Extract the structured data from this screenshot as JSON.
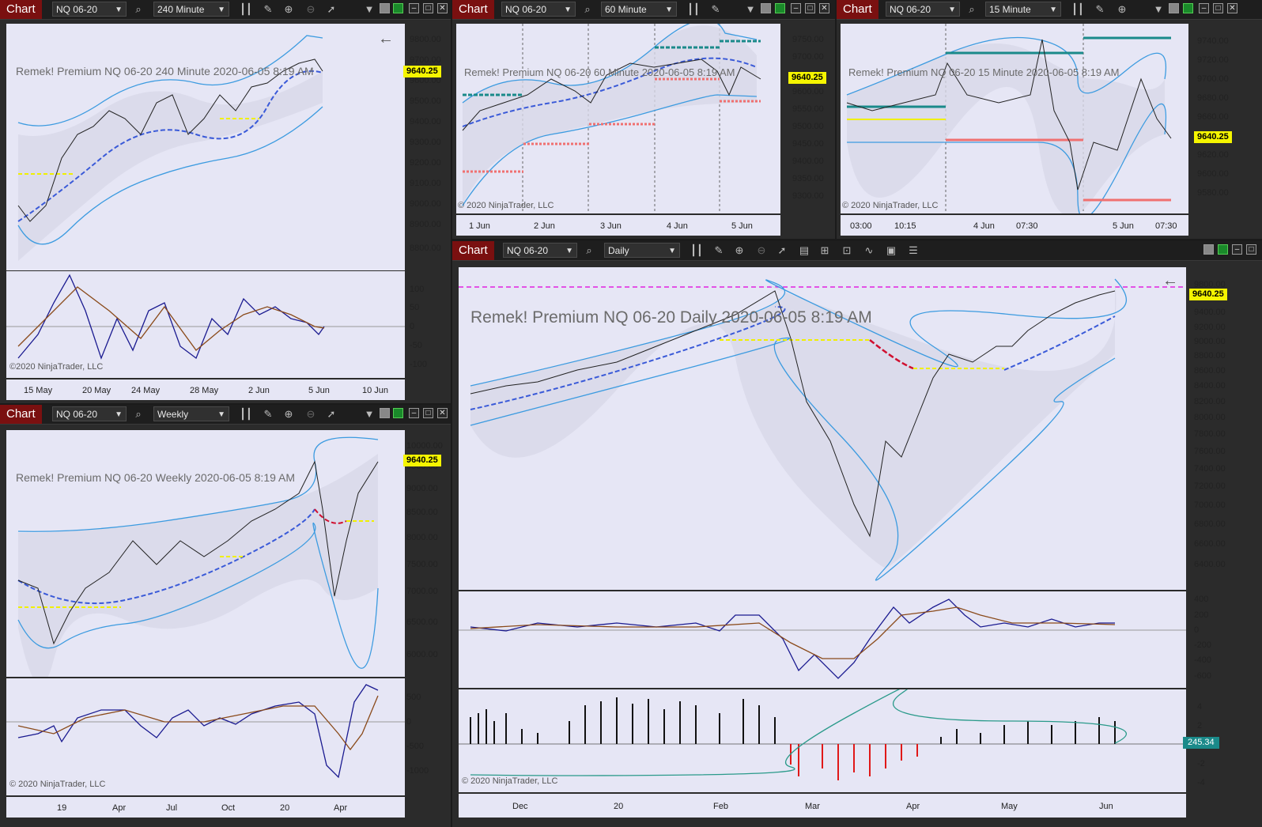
{
  "chart_label": "Chart",
  "instrument": "NQ 06-20",
  "copyright": "© 2020 NinjaTrader, LLC",
  "copyright_alt": "©2020 NinjaTrader, LLC",
  "last_price": "9640.25",
  "indicator_value": "245.34",
  "colors": {
    "last_price_bg": "#f5f500",
    "chart_label_bg": "#7a1010",
    "plot_bg": "#e6e6f5",
    "band": "#3c9be0",
    "ma": "#3a5ad8",
    "support": "#f0f000"
  },
  "win240": {
    "interval": "240 Minute",
    "title": "Remek!  Premium  NQ 06-20  240 Minute  2020-06-05 8:19 AM",
    "price_ticks": [
      "9800.00",
      "9700.00",
      "9600.00",
      "9500.00",
      "9400.00",
      "9300.00",
      "9200.00",
      "9100.00",
      "9000.00",
      "8900.00",
      "8800.00"
    ],
    "osc_ticks": [
      "100",
      "50",
      "0",
      "-50",
      "-100"
    ],
    "dates": [
      "15 May",
      "20 May",
      "24 May",
      "28 May",
      "2 Jun",
      "5 Jun",
      "10 Jun"
    ]
  },
  "win60": {
    "interval": "60 Minute",
    "title": "Remek!  Premium  NQ 06-20  60 Minute  2020-06-05 8:19 AM",
    "price_ticks": [
      "9750.00",
      "9700.00",
      "9650.00",
      "9600.00",
      "9550.00",
      "9500.00",
      "9450.00",
      "9400.00",
      "9350.00",
      "9300.00"
    ],
    "dates": [
      "1 Jun",
      "2 Jun",
      "3 Jun",
      "4 Jun",
      "5 Jun"
    ]
  },
  "win15": {
    "interval": "15 Minute",
    "title": "Remek!  Premium  NQ 06-20  15 Minute  2020-06-05 8:19 AM",
    "price_ticks": [
      "9740.00",
      "9720.00",
      "9700.00",
      "9680.00",
      "9660.00",
      "9620.00",
      "9600.00",
      "9580.00"
    ],
    "dates": [
      "03:00",
      "10:15",
      "4 Jun",
      "07:30",
      "5 Jun",
      "07:30"
    ]
  },
  "winW": {
    "interval": "Weekly",
    "title": "Remek!  Premium  NQ 06-20  Weekly  2020-06-05 8:19 AM",
    "price_ticks": [
      "10000.00",
      "9500.00",
      "9000.00",
      "8500.00",
      "8000.00",
      "7500.00",
      "7000.00",
      "6500.00",
      "6000.00"
    ],
    "osc_ticks": [
      "500",
      "0",
      "-500",
      "-1000"
    ],
    "dates": [
      "19",
      "Apr",
      "Jul",
      "Oct",
      "20",
      "Apr"
    ]
  },
  "winD": {
    "interval": "Daily",
    "title": "Remek!  Premium  NQ 06-20  Daily  2020-06-05 8:19 AM",
    "price_ticks": [
      "9800.00",
      "9400.00",
      "9200.00",
      "9000.00",
      "8800.00",
      "8600.00",
      "8400.00",
      "8200.00",
      "8000.00",
      "7800.00",
      "7600.00",
      "7400.00",
      "7200.00",
      "7000.00",
      "6800.00",
      "6600.00",
      "6400.00"
    ],
    "osc_ticks": [
      "400",
      "200",
      "0",
      "-200",
      "-400",
      "-600"
    ],
    "hist_ticks": [
      "4",
      "2",
      "-2",
      "-4"
    ],
    "dates": [
      "Dec",
      "20",
      "Feb",
      "Mar",
      "Apr",
      "May",
      "Jun"
    ]
  }
}
